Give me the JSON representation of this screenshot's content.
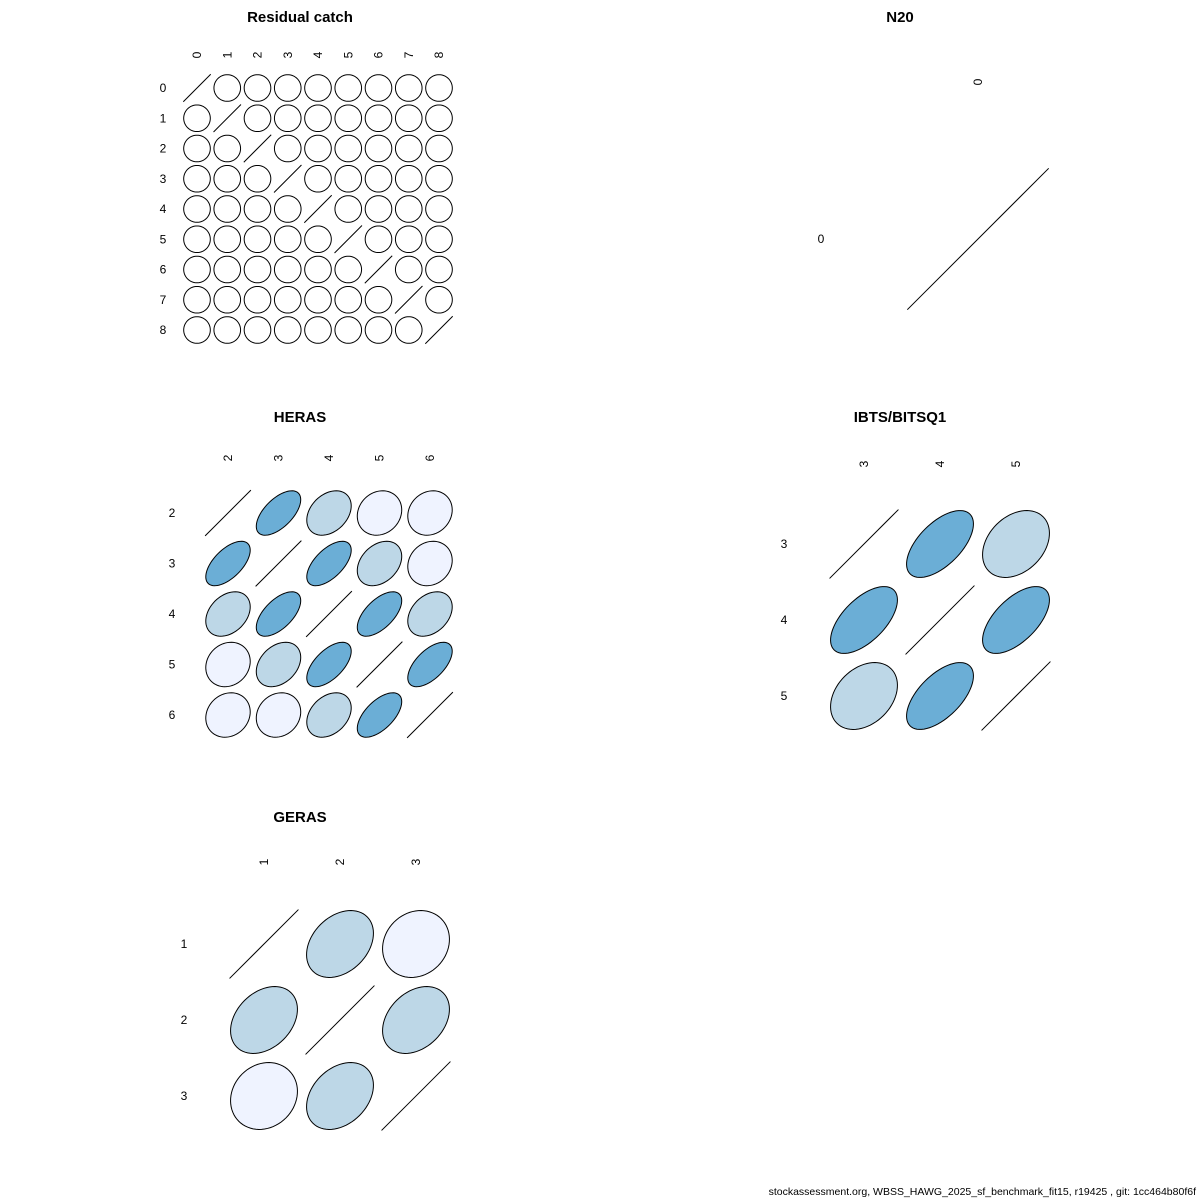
{
  "chart_data": [
    {
      "type": "heatmap",
      "subtype": "correlation-ellipse",
      "title": "Residual catch",
      "labels": [
        "0",
        "1",
        "2",
        "3",
        "4",
        "5",
        "6",
        "7",
        "8"
      ],
      "matrix": [
        [
          1,
          0,
          0,
          0,
          0,
          0,
          0,
          0,
          0
        ],
        [
          0,
          1,
          0,
          0,
          0,
          0,
          0,
          0,
          0
        ],
        [
          0,
          0,
          1,
          0,
          0,
          0,
          0,
          0,
          0
        ],
        [
          0,
          0,
          0,
          1,
          0,
          0,
          0,
          0,
          0
        ],
        [
          0,
          0,
          0,
          0,
          1,
          0,
          0,
          0,
          0
        ],
        [
          0,
          0,
          0,
          0,
          0,
          1,
          0,
          0,
          0
        ],
        [
          0,
          0,
          0,
          0,
          0,
          0,
          1,
          0,
          0
        ],
        [
          0,
          0,
          0,
          0,
          0,
          0,
          0,
          1,
          0
        ],
        [
          0,
          0,
          0,
          0,
          0,
          0,
          0,
          0,
          1
        ]
      ]
    },
    {
      "type": "heatmap",
      "subtype": "correlation-ellipse",
      "title": "N20",
      "labels": [
        "0"
      ],
      "matrix": [
        [
          1
        ]
      ]
    },
    {
      "type": "heatmap",
      "subtype": "correlation-ellipse",
      "title": "HERAS",
      "labels": [
        "2",
        "3",
        "4",
        "5",
        "6"
      ],
      "matrix": [
        [
          1,
          0.6,
          0.32,
          0.14,
          0.14
        ],
        [
          0.6,
          1,
          0.6,
          0.32,
          0.14
        ],
        [
          0.32,
          0.6,
          1,
          0.6,
          0.32
        ],
        [
          0.14,
          0.32,
          0.6,
          1,
          0.6
        ],
        [
          0.14,
          0.14,
          0.32,
          0.6,
          1
        ]
      ]
    },
    {
      "type": "heatmap",
      "subtype": "correlation-ellipse",
      "title": "IBTS/BITSQ1",
      "labels": [
        "3",
        "4",
        "5"
      ],
      "matrix": [
        [
          1,
          0.6,
          0.32
        ],
        [
          0.6,
          1,
          0.6
        ],
        [
          0.32,
          0.6,
          1
        ]
      ]
    },
    {
      "type": "heatmap",
      "subtype": "correlation-ellipse",
      "title": "GERAS",
      "labels": [
        "1",
        "2",
        "3"
      ],
      "matrix": [
        [
          1,
          0.32,
          0.14
        ],
        [
          0.32,
          1,
          0.32
        ],
        [
          0.14,
          0.32,
          1
        ]
      ]
    }
  ],
  "colors": {
    "zero": "#FFFFFF",
    "low": "#EFF3FF",
    "mid": "#BDD7E7",
    "high": "#6BAED6",
    "outline": "#000000"
  },
  "footer": "stockassessment.org, WBSS_HAWG_2025_sf_benchmark_fit15, r19425 , git: 1cc464b80f6f"
}
